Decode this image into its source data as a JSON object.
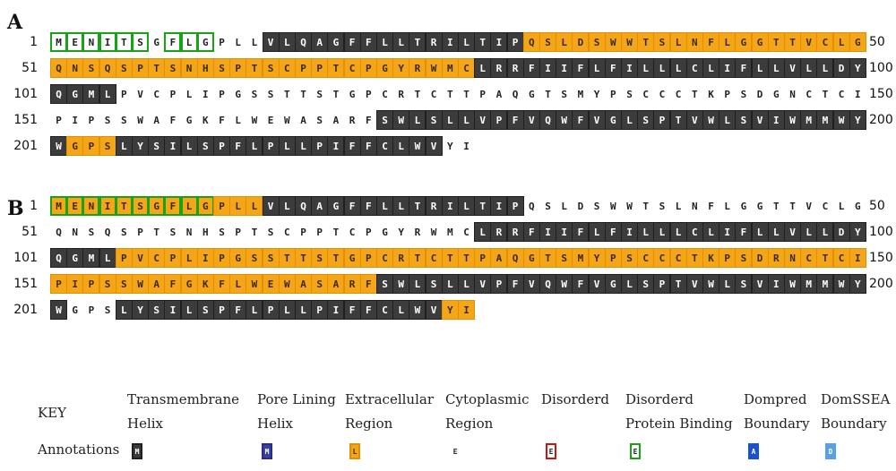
{
  "panels": [
    {
      "label": "A",
      "rows": [
        {
          "start": "1",
          "end": "50",
          "seq": "MENITSGFLGPLLVLQAGFFLLTRILTIPQSLDSWWTSLNFLGGTTVCLG",
          "ann": "NNNNNNNNNNNNNTTTTTTTTTTTTTTTTEEEEEEEEEEEEEEEEEEEEE",
          "bind": [
            0,
            1,
            2,
            3,
            4,
            5,
            7,
            8,
            9
          ]
        },
        {
          "start": "51",
          "end": "100",
          "seq": "QNSQSPTSNHSPTSCPPTCPGYRWMCLRRFIIFLFILLLCLIFLLVLLDY",
          "ann": "EEEEEEEEEEEEEEEEEEEEEEEEEETTTTTTTTTTTTTTTTTTTTTTTT",
          "bind": []
        },
        {
          "start": "101",
          "end": "150",
          "seq": "QGMLPVCPLIPGSSTTSTGPCRTCTTPAQGTSMYPSCCCTKPSDGNCTCI",
          "ann": "TTTTNNNNNNNNNNNNNNNNNNNNNNNNNNNNNNNNNNNNNNNNNNNNNN",
          "bind": []
        },
        {
          "start": "151",
          "end": "200",
          "seq": "PIPSSWAFGKFLWEWASARFSWLSLLVPFVQWFVGLSPTVWLSVIWMMWY",
          "ann": "NNNNNNNNNNNNNNNNNNNNTTTTTTTTTTTTTTTTTTTTTTTTTTTTTT",
          "bind": []
        },
        {
          "start": "201",
          "end": "",
          "seq": "WGPSLYSILSPFLPLLPIFFCLWVYI",
          "ann": "TEEETTTTTTTTTTTTTTTTTTTTNN",
          "bind": []
        }
      ]
    },
    {
      "label": "B",
      "rows": [
        {
          "start": "1",
          "end": "50",
          "seq": "MENITSGFLGPLLVLQAGFFLLTRILTIPQSLDSWWTSLNFLGGTTVCLG",
          "ann": "EEEEEEEEEEEEETTTTTTTTTTTTTTTTNNNNNNNNNNNNNNNNNNNNN",
          "bind": [
            0,
            1,
            2,
            3,
            4,
            5,
            6,
            7,
            8,
            9
          ]
        },
        {
          "start": "51",
          "end": "100",
          "seq": "QNSQSPTSNHSPTSCPPTCPGYRWMCLRRFIIFLFILLLCLIFLLVLLDY",
          "ann": "NNNNNNNNNNNNNNNNNNNNNNNNNNTTTTTTTTTTTTTTTTTTTTTTTT",
          "bind": []
        },
        {
          "start": "101",
          "end": "150",
          "seq": "QGMLPVCPLIPGSSTTSTGPCRTCTTPAQGTSMYPSCCCTKPSDRNCTCI",
          "ann": "TTTTEEEEEEEEEEEEEEEEEEEEEEEEEEEEEEEEEEEEEEEEEEEEEE",
          "bind": []
        },
        {
          "start": "151",
          "end": "200",
          "seq": "PIPSSWAFGKFLWEWASARFSWLSLLVPFVQWFVGLSPTVWLSVIWMMWY",
          "ann": "EEEEEEEEEEEEEEEEEEEETTTTTTTTTTTTTTTTTTTTTTTTTTTTTT",
          "bind": []
        },
        {
          "start": "201",
          "end": "",
          "seq": "WGPSLYSILSPFLPLLPIFFCLWVYI",
          "ann": "TNNNTTTTTTTTTTTTTTTTTTTTEE",
          "bind": []
        }
      ]
    }
  ],
  "key": {
    "title": "KEY",
    "annotations_label": "Annotations",
    "items": [
      {
        "line1": "Transmembrane",
        "line2": "Helix",
        "glyph": "M",
        "bg": "#3c3c3c",
        "fg": "#ffffff",
        "border": "#202020"
      },
      {
        "line1": "Pore Lining",
        "line2": "Helix",
        "glyph": "M",
        "bg": "#3b3fa6",
        "fg": "#ffffff",
        "border": "#2a2d80"
      },
      {
        "line1": "Extracellular",
        "line2": "Region",
        "glyph": "L",
        "bg": "#f5a518",
        "fg": "#3a2a00",
        "border": "#e09000"
      },
      {
        "line1": "Cytoplasmic",
        "line2": "Region",
        "glyph": "E",
        "bg": "#ffffff",
        "fg": "#222222",
        "border": "#ffffff"
      },
      {
        "line1": "Disorderd",
        "line2": "",
        "glyph": "E",
        "bg": "#ffffff",
        "fg": "#222222",
        "border": "#c01818"
      },
      {
        "line1": "Disorderd",
        "line2": "Protein Binding",
        "glyph": "E",
        "bg": "#ffffff",
        "fg": "#222222",
        "border": "#16a316"
      },
      {
        "line1": "Dompred",
        "line2": "Boundary",
        "glyph": "A",
        "bg": "#1a4fd6",
        "fg": "#ffffff",
        "border": "#1a4fd6"
      },
      {
        "line1": "DomSSEA",
        "line2": "Boundary",
        "glyph": "D",
        "bg": "#5aa0e6",
        "fg": "#ffffff",
        "border": "#5aa0e6"
      }
    ]
  }
}
